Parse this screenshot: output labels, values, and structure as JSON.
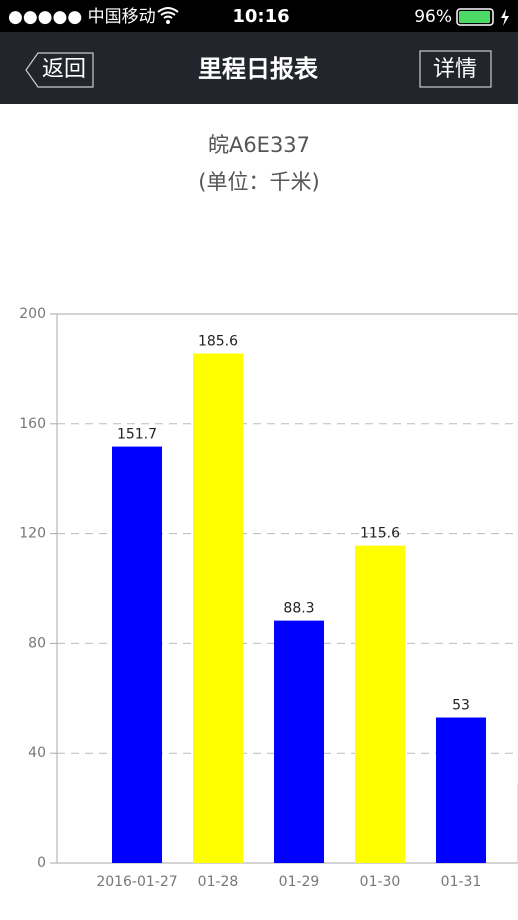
{
  "status_bar": {
    "carrier": "●●●●● 中国移动",
    "time": "10:16",
    "battery": "96%"
  },
  "nav": {
    "back": "返回",
    "title": "里程日报表",
    "detail": "详情"
  },
  "chart_data": {
    "type": "bar",
    "title": "皖A6E337",
    "subtitle": "(单位：千米)",
    "categories": [
      "2016-01-27",
      "01-28",
      "01-29",
      "01-30",
      "01-31",
      null
    ],
    "values": [
      151.7,
      185.6,
      88.3,
      115.6,
      53,
      29
    ],
    "colors": [
      "#0000ff",
      "#ffff00",
      "#0000ff",
      "#ffff00",
      "#0000ff",
      "#ffff00"
    ],
    "ylim": [
      0,
      200
    ],
    "yticks": [
      0,
      40,
      80,
      120,
      160,
      200
    ],
    "grid": true
  }
}
